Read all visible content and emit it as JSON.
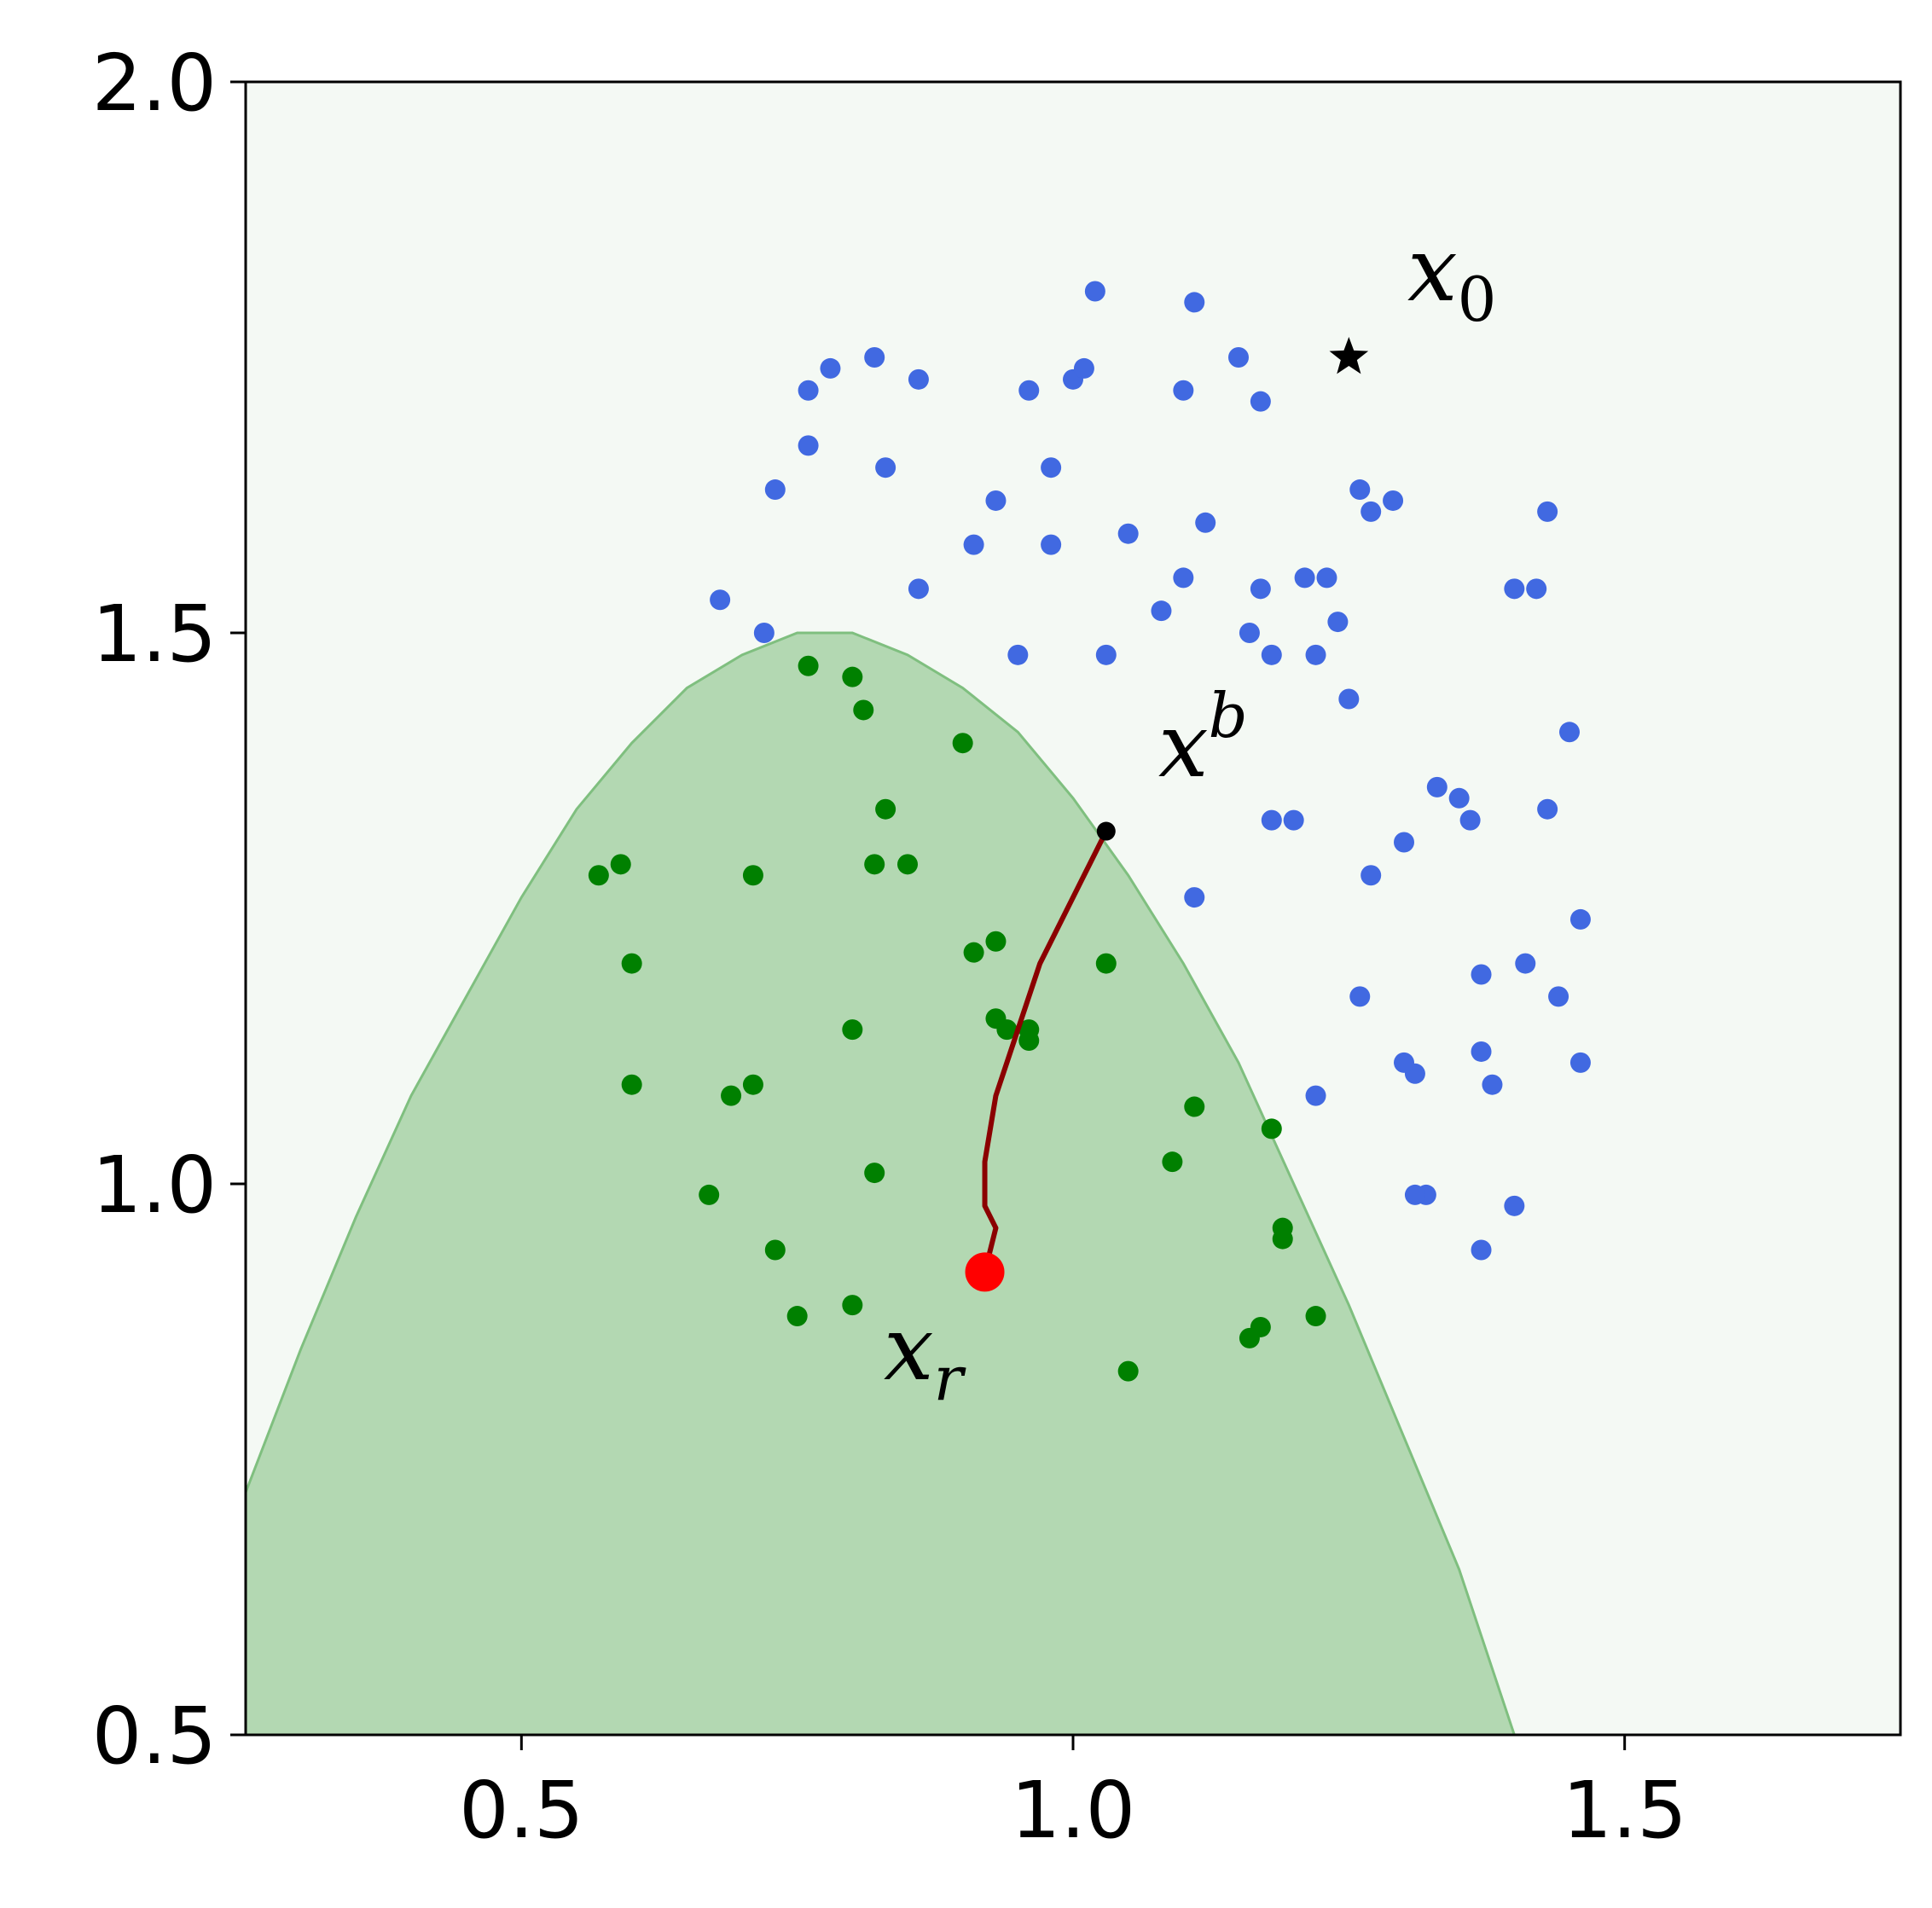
{
  "chart_data": {
    "type": "scatter",
    "title": "",
    "xlabel": "",
    "ylabel": "",
    "xlim": [
      0.25,
      1.75
    ],
    "ylim": [
      0.5,
      2.0
    ],
    "x_ticks": [
      0.5,
      1.0,
      1.5
    ],
    "y_ticks": [
      0.5,
      1.0,
      1.5,
      2.0
    ],
    "x_tick_labels": [
      "0.5",
      "1.0",
      "1.5"
    ],
    "y_tick_labels": [
      "0.5",
      "1.0",
      "1.5",
      "2.0"
    ],
    "grid": false,
    "colors": {
      "background": "#f4f9f4",
      "region_fill": "#b3d8b2",
      "region_edge": "#7fbf7f",
      "blue_points": "#4169e1",
      "green_points": "#008000",
      "path": "#8b0000",
      "x_r_point": "#ff0000",
      "x_b_point": "#000000",
      "x0_marker": "#000000"
    },
    "region_boundary": {
      "x": [
        0.25,
        0.3,
        0.35,
        0.4,
        0.45,
        0.5,
        0.55,
        0.6,
        0.65,
        0.7,
        0.75,
        0.8,
        0.85,
        0.9,
        0.95,
        1.0,
        1.05,
        1.1,
        1.15,
        1.2,
        1.25,
        1.3,
        1.35,
        1.4
      ],
      "y": [
        0.72,
        0.85,
        0.97,
        1.08,
        1.17,
        1.26,
        1.34,
        1.4,
        1.45,
        1.48,
        1.5,
        1.5,
        1.48,
        1.45,
        1.41,
        1.35,
        1.28,
        1.2,
        1.11,
        1.0,
        0.89,
        0.77,
        0.65,
        0.5
      ]
    },
    "series": [
      {
        "x": [
          0.68,
          0.73,
          0.76,
          0.76,
          0.78,
          0.82,
          0.83,
          0.86,
          0.86,
          0.91,
          0.93,
          0.96,
          0.98,
          0.98,
          1.0,
          1.01,
          1.02,
          1.05,
          1.03,
          1.08,
          1.1,
          1.1,
          1.11,
          1.12,
          1.15,
          1.16,
          1.17,
          1.17,
          1.18,
          1.21,
          1.22,
          1.23,
          1.24,
          1.26,
          1.26,
          1.27,
          1.29,
          1.25,
          0.72,
          0.95,
          1.11,
          1.18,
          1.22,
          1.3,
          1.31,
          1.32,
          1.33,
          1.35,
          1.36,
          1.37,
          1.37,
          1.37,
          1.38,
          1.4,
          1.4,
          1.41,
          1.42,
          1.43,
          1.43,
          1.44,
          1.45,
          1.46,
          1.46,
          1.2,
          1.27,
          1.3,
          1.31
        ],
        "y": [
          1.53,
          1.63,
          1.67,
          1.72,
          1.74,
          1.75,
          1.65,
          1.73,
          1.54,
          1.58,
          1.62,
          1.72,
          1.65,
          1.58,
          1.73,
          1.74,
          1.81,
          1.59,
          1.48,
          1.52,
          1.72,
          1.55,
          1.8,
          1.6,
          1.75,
          1.5,
          1.54,
          1.71,
          1.48,
          1.55,
          1.48,
          1.55,
          1.51,
          1.63,
          1.17,
          1.28,
          1.62,
          1.44,
          1.5,
          1.48,
          1.26,
          1.33,
          1.08,
          1.31,
          1.1,
          0.99,
          1.36,
          1.35,
          1.33,
          1.19,
          1.12,
          0.94,
          1.09,
          0.98,
          1.54,
          1.2,
          1.54,
          1.34,
          1.61,
          1.17,
          1.41,
          1.24,
          1.11,
          1.33,
          1.61,
          1.11,
          0.99
        ]
      },
      {
        "x": [
          0.57,
          0.59,
          0.6,
          0.6,
          0.67,
          0.69,
          0.71,
          0.71,
          0.73,
          0.75,
          0.76,
          0.8,
          0.8,
          0.8,
          0.81,
          0.82,
          0.82,
          0.83,
          0.9,
          0.91,
          0.93,
          0.93,
          0.94,
          0.96,
          0.96,
          1.03,
          1.05,
          1.09,
          1.11,
          1.16,
          1.17,
          1.18,
          1.19,
          1.19,
          1.22,
          0.85
        ],
        "y": [
          1.28,
          1.29,
          1.2,
          1.09,
          0.99,
          1.08,
          1.09,
          1.28,
          0.94,
          0.88,
          1.47,
          1.46,
          1.14,
          0.89,
          1.43,
          1.29,
          1.01,
          1.34,
          1.4,
          1.21,
          1.22,
          1.15,
          1.14,
          1.14,
          1.13,
          1.2,
          0.83,
          1.02,
          1.07,
          0.86,
          0.87,
          1.05,
          0.96,
          0.95,
          0.88,
          1.29
        ]
      }
    ],
    "path": {
      "x": [
        1.03,
        1.0,
        0.97,
        0.95,
        0.93,
        0.92,
        0.92,
        0.93,
        0.92
      ],
      "y": [
        1.32,
        1.26,
        1.2,
        1.14,
        1.08,
        1.02,
        0.98,
        0.96,
        0.92
      ]
    },
    "x_b": {
      "x": 1.03,
      "y": 1.32
    },
    "x_r": {
      "x": 0.92,
      "y": 0.92
    },
    "x0": {
      "x": 1.25,
      "y": 1.75
    },
    "annotations": {
      "x0_main": "x",
      "x0_sub": "0",
      "xb_main": "x",
      "xb_sup": "b",
      "xr_main": "x",
      "xr_sub": "r"
    }
  }
}
